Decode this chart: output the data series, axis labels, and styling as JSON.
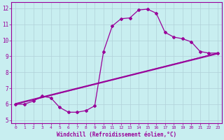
{
  "xlabel": "Windchill (Refroidissement éolien,°C)",
  "bg_color": "#c8eef0",
  "line_color": "#990099",
  "grid_color": "#b0d0d8",
  "xlim": [
    -0.5,
    23.5
  ],
  "ylim": [
    4.8,
    12.4
  ],
  "xticks": [
    0,
    1,
    2,
    3,
    4,
    5,
    6,
    7,
    8,
    9,
    10,
    11,
    12,
    13,
    14,
    15,
    16,
    17,
    18,
    19,
    20,
    21,
    22,
    23
  ],
  "yticks": [
    5,
    6,
    7,
    8,
    9,
    10,
    11,
    12
  ],
  "line1_x": [
    0,
    1,
    2,
    3,
    4,
    5,
    6,
    7,
    8,
    9,
    10,
    11,
    12,
    13,
    14,
    15,
    16,
    17,
    18,
    19,
    20,
    21,
    22,
    23
  ],
  "line1_y": [
    6.0,
    6.0,
    6.2,
    6.5,
    6.4,
    5.8,
    5.5,
    5.5,
    5.6,
    5.9,
    9.3,
    10.9,
    11.35,
    11.4,
    11.9,
    11.95,
    11.7,
    10.5,
    10.2,
    10.1,
    9.9,
    9.3,
    9.2,
    9.2
  ],
  "line2_x": [
    0,
    23
  ],
  "line2_y": [
    6.0,
    9.2
  ],
  "line3_x": [
    0,
    23
  ],
  "line3_y": [
    6.0,
    9.15
  ],
  "line4_x": [
    0,
    23
  ],
  "line4_y": [
    6.05,
    9.2
  ]
}
